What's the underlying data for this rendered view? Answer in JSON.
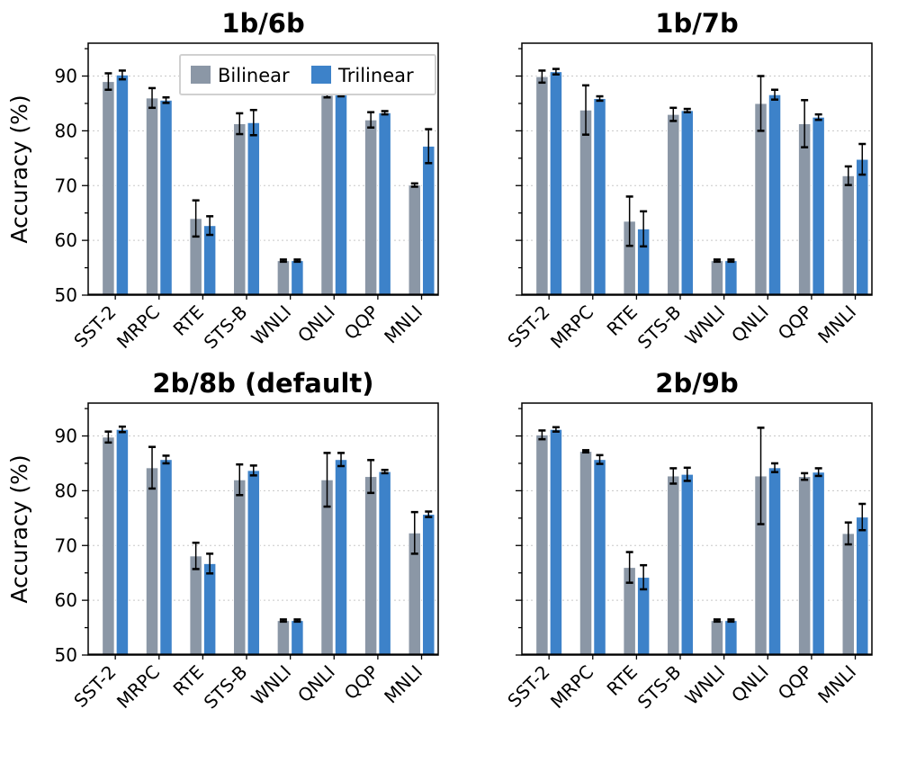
{
  "chart_data": [
    {
      "type": "bar",
      "title": "1b/6b",
      "ylabel": "Accuracy (%)",
      "ylim": [
        50,
        96
      ],
      "yticks": [
        "50",
        "60",
        "70",
        "80",
        "90"
      ],
      "categories": [
        "SST-2",
        "MRPC",
        "RTE",
        "STS-B",
        "WNLI",
        "QNLI",
        "QQP",
        "MNLI"
      ],
      "legend": {
        "placement": "top-center"
      },
      "grid": "y-dotted",
      "series": [
        {
          "name": "Bilinear",
          "values": [
            89.0,
            86.0,
            64.0,
            81.3,
            56.3,
            86.5,
            82.0,
            70.1
          ],
          "errors": [
            1.5,
            1.8,
            3.3,
            1.9,
            0.2,
            0.4,
            1.4,
            0.3
          ]
        },
        {
          "name": "Trilinear",
          "values": [
            90.2,
            85.6,
            62.7,
            81.5,
            56.3,
            87.3,
            83.3,
            77.2
          ],
          "errors": [
            0.8,
            0.5,
            1.7,
            2.3,
            0.2,
            1.0,
            0.3,
            3.1
          ]
        }
      ]
    },
    {
      "type": "bar",
      "title": "1b/7b",
      "ylabel": "",
      "ylim": [
        50,
        96
      ],
      "yticks": [],
      "categories": [
        "SST-2",
        "MRPC",
        "RTE",
        "STS-B",
        "WNLI",
        "QNLI",
        "QQP",
        "MNLI"
      ],
      "grid": "y-dotted",
      "series": [
        {
          "name": "Bilinear",
          "values": [
            89.9,
            83.8,
            63.5,
            83.0,
            56.3,
            85.0,
            81.3,
            71.8
          ],
          "errors": [
            1.1,
            4.5,
            4.5,
            1.2,
            0.2,
            5.0,
            4.3,
            1.7
          ]
        },
        {
          "name": "Trilinear",
          "values": [
            90.8,
            85.9,
            62.1,
            83.7,
            56.3,
            86.6,
            82.5,
            74.8
          ],
          "errors": [
            0.5,
            0.4,
            3.2,
            0.3,
            0.2,
            0.9,
            0.5,
            2.8
          ]
        }
      ]
    },
    {
      "type": "bar",
      "title": "2b/8b (default)",
      "ylabel": "Accuracy (%)",
      "ylim": [
        50,
        96
      ],
      "yticks": [
        "50",
        "60",
        "70",
        "80",
        "90"
      ],
      "categories": [
        "SST-2",
        "MRPC",
        "RTE",
        "STS-B",
        "WNLI",
        "QNLI",
        "QQP",
        "MNLI"
      ],
      "grid": "y-dotted",
      "series": [
        {
          "name": "Bilinear",
          "values": [
            89.8,
            84.2,
            68.1,
            82.0,
            56.3,
            82.0,
            82.6,
            72.3
          ],
          "errors": [
            1.0,
            3.8,
            2.4,
            2.8,
            0.2,
            4.9,
            3.0,
            3.8
          ]
        },
        {
          "name": "Trilinear",
          "values": [
            91.2,
            85.7,
            66.7,
            83.7,
            56.3,
            85.7,
            83.5,
            75.7
          ],
          "errors": [
            0.5,
            0.7,
            1.8,
            0.9,
            0.2,
            1.2,
            0.3,
            0.5
          ]
        }
      ]
    },
    {
      "type": "bar",
      "title": "2b/9b",
      "ylabel": "",
      "ylim": [
        50,
        96
      ],
      "yticks": [],
      "categories": [
        "SST-2",
        "MRPC",
        "RTE",
        "STS-B",
        "WNLI",
        "QNLI",
        "QQP",
        "MNLI"
      ],
      "grid": "y-dotted",
      "series": [
        {
          "name": "Bilinear",
          "values": [
            90.2,
            87.2,
            66.0,
            82.7,
            56.3,
            82.7,
            82.6,
            72.2
          ],
          "errors": [
            0.8,
            0.2,
            2.8,
            1.4,
            0.2,
            8.8,
            0.6,
            2.0
          ]
        },
        {
          "name": "Trilinear",
          "values": [
            91.2,
            85.7,
            64.2,
            83.0,
            56.3,
            84.2,
            83.4,
            75.2
          ],
          "errors": [
            0.4,
            0.8,
            2.2,
            1.2,
            0.2,
            0.8,
            0.7,
            2.4
          ]
        }
      ]
    }
  ],
  "colors": {
    "bilinear": "#8b97a6",
    "trilinear": "#3d82c9",
    "grid": "#c8c8c8"
  }
}
